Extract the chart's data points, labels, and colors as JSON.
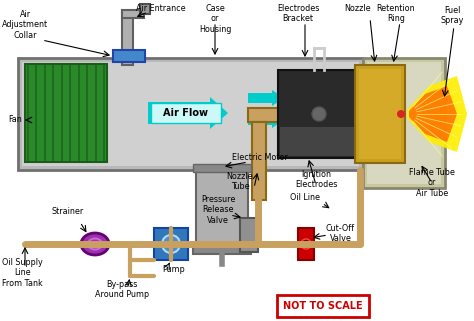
{
  "bg_color": "#ffffff",
  "labels": {
    "air_adjustment_collar": "Air\nAdjustment\nCollar",
    "air_entrance": "Air Entrance",
    "case_housing": "Case\nor\nHousing",
    "electrodes_bracket": "Electrodes\nBracket",
    "nozzle": "Nozzle",
    "retention_ring": "Retention\nRing",
    "fuel_spray": "Fuel\nSpray",
    "fan": "Fan",
    "air_flow": "Air Flow",
    "nozzle_tube": "Nozzle\nTube",
    "ignition_electrodes": "Ignition\nElectrodes",
    "flame_tube": "Flame Tube\nor\nAir Tube",
    "electric_motor": "Electric Motor",
    "pressure_release_valve": "Pressure\nRelease\nValve",
    "oil_line": "Oil Line",
    "strainer": "Strainer",
    "pump": "Pump",
    "cut_off_valve": "Cut-Off\nValve",
    "oil_supply_line": "Oil Supply\nLine\nFrom Tank",
    "bypass_pump": "By-pass\nAround Pump",
    "not_to_scale": "NOT TO SCALE"
  },
  "colors": {
    "outer_casing": "#b8b8b8",
    "outer_casing_edge": "#707070",
    "casing_inner": "#d0d0d0",
    "fan_green": "#2a8a2a",
    "fan_dark": "#1a5c1a",
    "air_entrance_silver": "#b0b0b0",
    "air_collar_blue": "#4488cc",
    "air_flow_arrow": "#00cccc",
    "air_flow_fill": "#ccf8f8",
    "nozzle_tube_tan": "#c8a060",
    "nozzle_tube_edge": "#8b6914",
    "black_cyl": "#2a2a2a",
    "gold_assembly": "#c8a020",
    "gold_edge": "#8b6914",
    "flame_yellow": "#ffee00",
    "flame_orange": "#ff6600",
    "motor_body": "#b0b0b0",
    "motor_cap": "#888888",
    "pump_blue": "#3377bb",
    "pump_edge": "#1144aa",
    "strainer_purple": "#9933aa",
    "strainer_edge": "#660077",
    "oil_tan": "#c8a060",
    "prv_gray": "#909090",
    "cutoff_red": "#cc0000",
    "cutoff_dark": "#880000",
    "not_to_scale_text": "#cc0000",
    "not_to_scale_box": "#cc0000",
    "label_black": "#000000",
    "electrode_silver": "#cccccc",
    "flame_tube_bg": "#c8c8a0",
    "flame_tube_edge": "#888870"
  }
}
